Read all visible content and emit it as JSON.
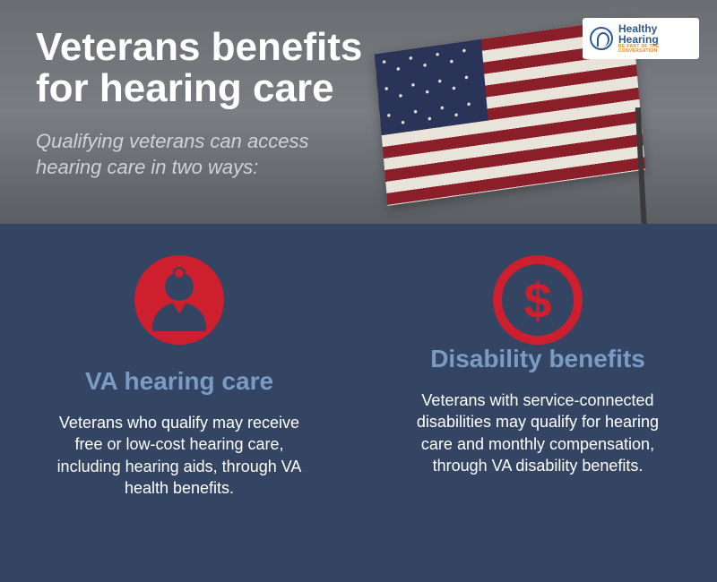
{
  "header": {
    "title_line1": "Veterans benefits",
    "title_line2": "for hearing care",
    "title_fontsize": 44,
    "title_color": "#ffffff",
    "subtitle_line1": "Qualifying veterans can access",
    "subtitle_line2": "hearing care in two ways:",
    "subtitle_fontsize": 22,
    "subtitle_color": "#d0d2d6",
    "background_gradient": [
      "#6a6d72",
      "#7a7d82",
      "#5a5d62"
    ]
  },
  "logo": {
    "text": "Healthy Hearing",
    "subtext": "BE PART OF THE CONVERSATION",
    "text_color": "#2d5a8f",
    "sub_color": "#e08a2a",
    "badge_bg": "#ffffff"
  },
  "flag": {
    "stripe_red": "#8a1f2a",
    "stripe_white": "#e8e4da",
    "canton_blue": "#2a3458",
    "pole_color": "#3a3a3a"
  },
  "content": {
    "background_color": "#344463",
    "columns": [
      {
        "icon": "doctor",
        "icon_bg": "#ce1f2e",
        "icon_fg": "#344463",
        "title": "VA hearing care",
        "body": "Veterans who qualify may receive free or low-cost hearing care, including hearing aids, through VA health benefits."
      },
      {
        "icon": "dollar",
        "icon_bg": "transparent",
        "icon_ring": "#ce1f2e",
        "icon_fg": "#ce1f2e",
        "title": "Disability benefits",
        "body": "Veterans with service-connected disabilities may qualify for hearing care and monthly compensation, through VA disability benefits."
      }
    ],
    "title_color": "#7a9bc4",
    "title_fontsize": 28,
    "body_color": "#ffffff",
    "body_fontsize": 18,
    "dollar_fontsize": 56
  }
}
